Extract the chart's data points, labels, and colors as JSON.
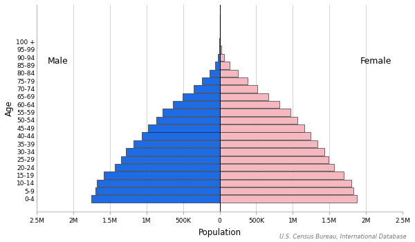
{
  "age_groups": [
    "0-4",
    "5-9",
    "10-14",
    "15-19",
    "20-24",
    "25-29",
    "30-34",
    "35-39",
    "40-44",
    "45-49",
    "50-54",
    "55-59",
    "60-64",
    "65-69",
    "70-74",
    "75-79",
    "80-84",
    "85-89",
    "90-94",
    "95-99",
    "100 +"
  ],
  "male": [
    1750000,
    1700000,
    1680000,
    1580000,
    1430000,
    1350000,
    1280000,
    1180000,
    1060000,
    980000,
    870000,
    780000,
    640000,
    510000,
    360000,
    240000,
    140000,
    65000,
    25000,
    7000,
    1200
  ],
  "female": [
    1880000,
    1830000,
    1800000,
    1700000,
    1560000,
    1490000,
    1430000,
    1340000,
    1240000,
    1160000,
    1060000,
    970000,
    820000,
    670000,
    510000,
    380000,
    250000,
    135000,
    60000,
    20000,
    4500
  ],
  "male_color": "#1E6BE6",
  "female_color": "#F5B8C0",
  "male_edge_color": "#111111",
  "female_edge_color": "#111111",
  "xlabel": "Population",
  "ylabel": "Age",
  "male_label": "Male",
  "female_label": "Female",
  "xlim": 2500000,
  "xtick_values": [
    -2500000,
    -2000000,
    -1500000,
    -1000000,
    -500000,
    0,
    500000,
    1000000,
    1500000,
    2000000,
    2500000
  ],
  "xtick_labels": [
    "2.5M",
    "2M",
    "1.5M",
    "1M",
    "500K",
    "0",
    "500K",
    "1M",
    "1.5M",
    "2M",
    "2.5M"
  ],
  "source_text": "U.S. Census Bureau, International Database",
  "bar_height": 0.92,
  "background_color": "#FFFFFF",
  "grid_color": "#CCCCCC"
}
